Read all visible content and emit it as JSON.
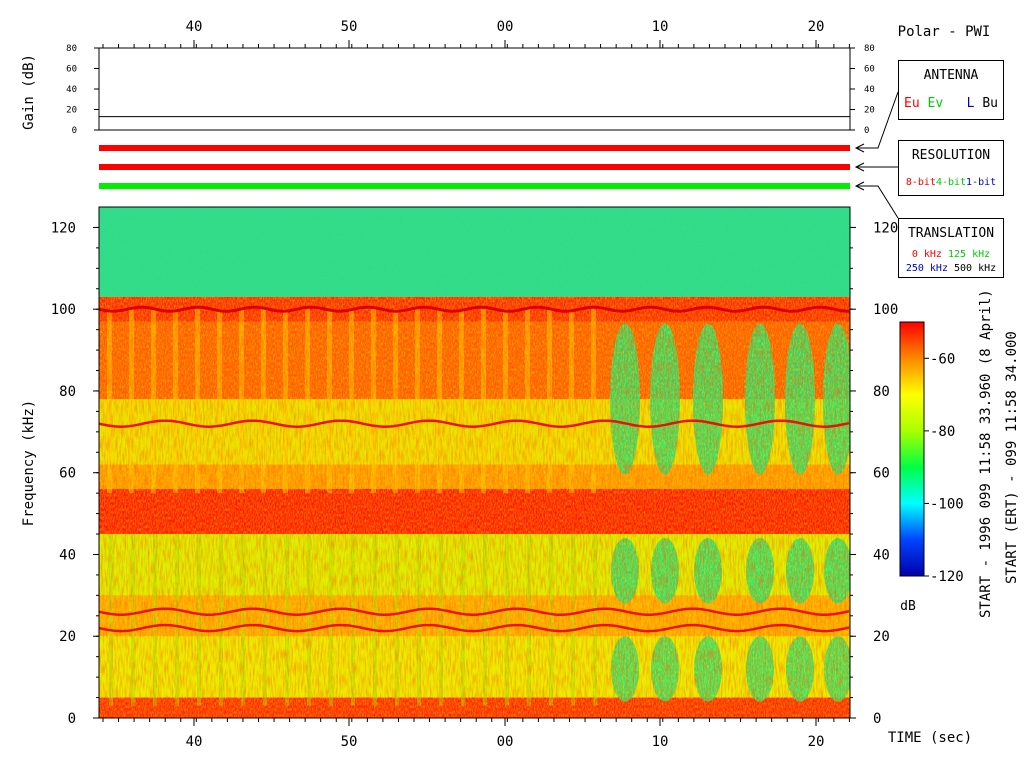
{
  "header": {
    "title": "Polar - PWI"
  },
  "gain_panel": {
    "ylabel": "Gain (dB)",
    "ticks": [
      0,
      20,
      40,
      60,
      80
    ],
    "ylim": [
      0,
      80
    ],
    "gain_value_db": 13
  },
  "legend_antenna": {
    "title": "ANTENNA",
    "items": [
      {
        "label": "Eu",
        "color": "#ff0000"
      },
      {
        "label": "Ev",
        "color": "#00cc00"
      },
      {
        "label": "L",
        "color": "#0000cc"
      },
      {
        "label": "Bu",
        "color": "#000000"
      }
    ]
  },
  "legend_resolution": {
    "title": "RESOLUTION",
    "items": [
      {
        "label": "8-bit",
        "color": "#ff0000"
      },
      {
        "label": "4-bit",
        "color": "#00cc00"
      },
      {
        "label": "1-bit",
        "color": "#0000cc"
      }
    ]
  },
  "legend_translation": {
    "title": "TRANSLATION",
    "row1": [
      {
        "label": "0 kHz",
        "color": "#ff0000"
      },
      {
        "label": "125 kHz",
        "color": "#00cc00"
      }
    ],
    "row2": [
      {
        "label": "250 kHz",
        "color": "#0000cc"
      },
      {
        "label": "500 kHz",
        "color": "#000000"
      }
    ]
  },
  "status_bars": [
    {
      "name": "antenna",
      "color": "#ff0000"
    },
    {
      "name": "resolution",
      "color": "#ff0000"
    },
    {
      "name": "translation",
      "color": "#00ee00"
    }
  ],
  "colorbar": {
    "unit": "dB",
    "ticks": [
      -60,
      -80,
      -100,
      -120
    ],
    "range": [
      -120,
      -50
    ],
    "colors": [
      "#0000aa",
      "#0044ff",
      "#00ffff",
      "#00ff44",
      "#aaff00",
      "#ffff00",
      "#ff8800",
      "#ff0000"
    ]
  },
  "start_info": {
    "line1": "START - 1996 099 11:58 33.960 (8 April)",
    "line2": "START (ERT) - 099 11:58 34.000"
  },
  "chart_data": {
    "type": "heatmap",
    "title": "Polar - PWI",
    "xlabel": "TIME (sec)",
    "ylabel": "Frequency (kHz)",
    "x_tick_labels": [
      "40",
      "50",
      "00",
      "10",
      "20"
    ],
    "y_ticks": [
      0,
      20,
      40,
      60,
      80,
      100,
      120
    ],
    "ylim": [
      0,
      125
    ],
    "colorbar_range_db": [
      -120,
      -50
    ],
    "bands": [
      {
        "frequency_khz": 100,
        "level": "strong line"
      },
      {
        "frequency_khz": 88,
        "level": "strong"
      },
      {
        "frequency_khz": 72,
        "level": "line"
      },
      {
        "frequency_khz": 50,
        "level": "strongest"
      },
      {
        "frequency_khz": 26,
        "level": "line"
      },
      {
        "frequency_khz": 22,
        "level": "line"
      },
      {
        "frequency_khz": 2,
        "level": "strong"
      }
    ]
  }
}
